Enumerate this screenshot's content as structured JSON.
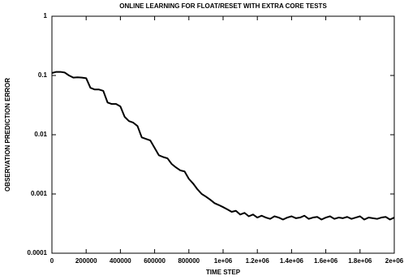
{
  "chart_data": {
    "type": "line",
    "title": "ONLINE LEARNING FOR FLOAT/RESET WITH EXTRA CORE TESTS",
    "xlabel": "TIME STEP",
    "ylabel": "OBSERVATION PREDICTION ERROR",
    "yscale": "log",
    "grid": false,
    "xlim": [
      0,
      2000000
    ],
    "ylim": [
      0.0001,
      1
    ],
    "xticks": [
      0,
      200000,
      400000,
      600000,
      800000,
      {
        "value": 1000000,
        "label": "1e+06"
      },
      {
        "value": 1200000,
        "label": "1.2e+06"
      },
      {
        "value": 1400000,
        "label": "1.4e+06"
      },
      {
        "value": 1600000,
        "label": "1.6e+06"
      },
      {
        "value": 1800000,
        "label": "1.8e+06"
      },
      {
        "value": 2000000,
        "label": "2e+06"
      }
    ],
    "yticks": [
      0.0001,
      0.001,
      0.01,
      0.1,
      1
    ],
    "x": [
      0,
      25000,
      50000,
      75000,
      100000,
      125000,
      150000,
      175000,
      200000,
      225000,
      250000,
      275000,
      300000,
      325000,
      350000,
      375000,
      400000,
      425000,
      450000,
      475000,
      500000,
      525000,
      550000,
      575000,
      600000,
      625000,
      650000,
      675000,
      700000,
      725000,
      750000,
      775000,
      800000,
      825000,
      850000,
      875000,
      900000,
      925000,
      950000,
      975000,
      1000000,
      1025000,
      1050000,
      1075000,
      1100000,
      1125000,
      1150000,
      1175000,
      1200000,
      1225000,
      1250000,
      1275000,
      1300000,
      1325000,
      1350000,
      1375000,
      1400000,
      1425000,
      1450000,
      1475000,
      1500000,
      1525000,
      1550000,
      1575000,
      1600000,
      1625000,
      1650000,
      1675000,
      1700000,
      1725000,
      1750000,
      1775000,
      1800000,
      1825000,
      1850000,
      1875000,
      1900000,
      1925000,
      1950000,
      1975000,
      2000000
    ],
    "series": [
      {
        "color": "#000000",
        "values": [
          0.11,
          0.115,
          0.115,
          0.112,
          0.1,
          0.092,
          0.093,
          0.092,
          0.09,
          0.062,
          0.058,
          0.058,
          0.055,
          0.035,
          0.033,
          0.033,
          0.03,
          0.02,
          0.017,
          0.016,
          0.014,
          0.009,
          0.0085,
          0.008,
          0.006,
          0.0045,
          0.0042,
          0.004,
          0.0032,
          0.0028,
          0.0025,
          0.0024,
          0.0018,
          0.0015,
          0.0012,
          0.001,
          0.0009,
          0.0008,
          0.0007,
          0.00065,
          0.0006,
          0.00055,
          0.0005,
          0.00052,
          0.00045,
          0.00048,
          0.00042,
          0.00045,
          0.0004,
          0.00043,
          0.0004,
          0.00038,
          0.00042,
          0.0004,
          0.00037,
          0.0004,
          0.00042,
          0.00039,
          0.0004,
          0.00043,
          0.00038,
          0.0004,
          0.00041,
          0.00037,
          0.0004,
          0.00042,
          0.00038,
          0.0004,
          0.00039,
          0.00041,
          0.00038,
          0.0004,
          0.00042,
          0.00037,
          0.0004,
          0.00039,
          0.00038,
          0.0004,
          0.00041,
          0.00037,
          0.0004
        ]
      }
    ]
  }
}
